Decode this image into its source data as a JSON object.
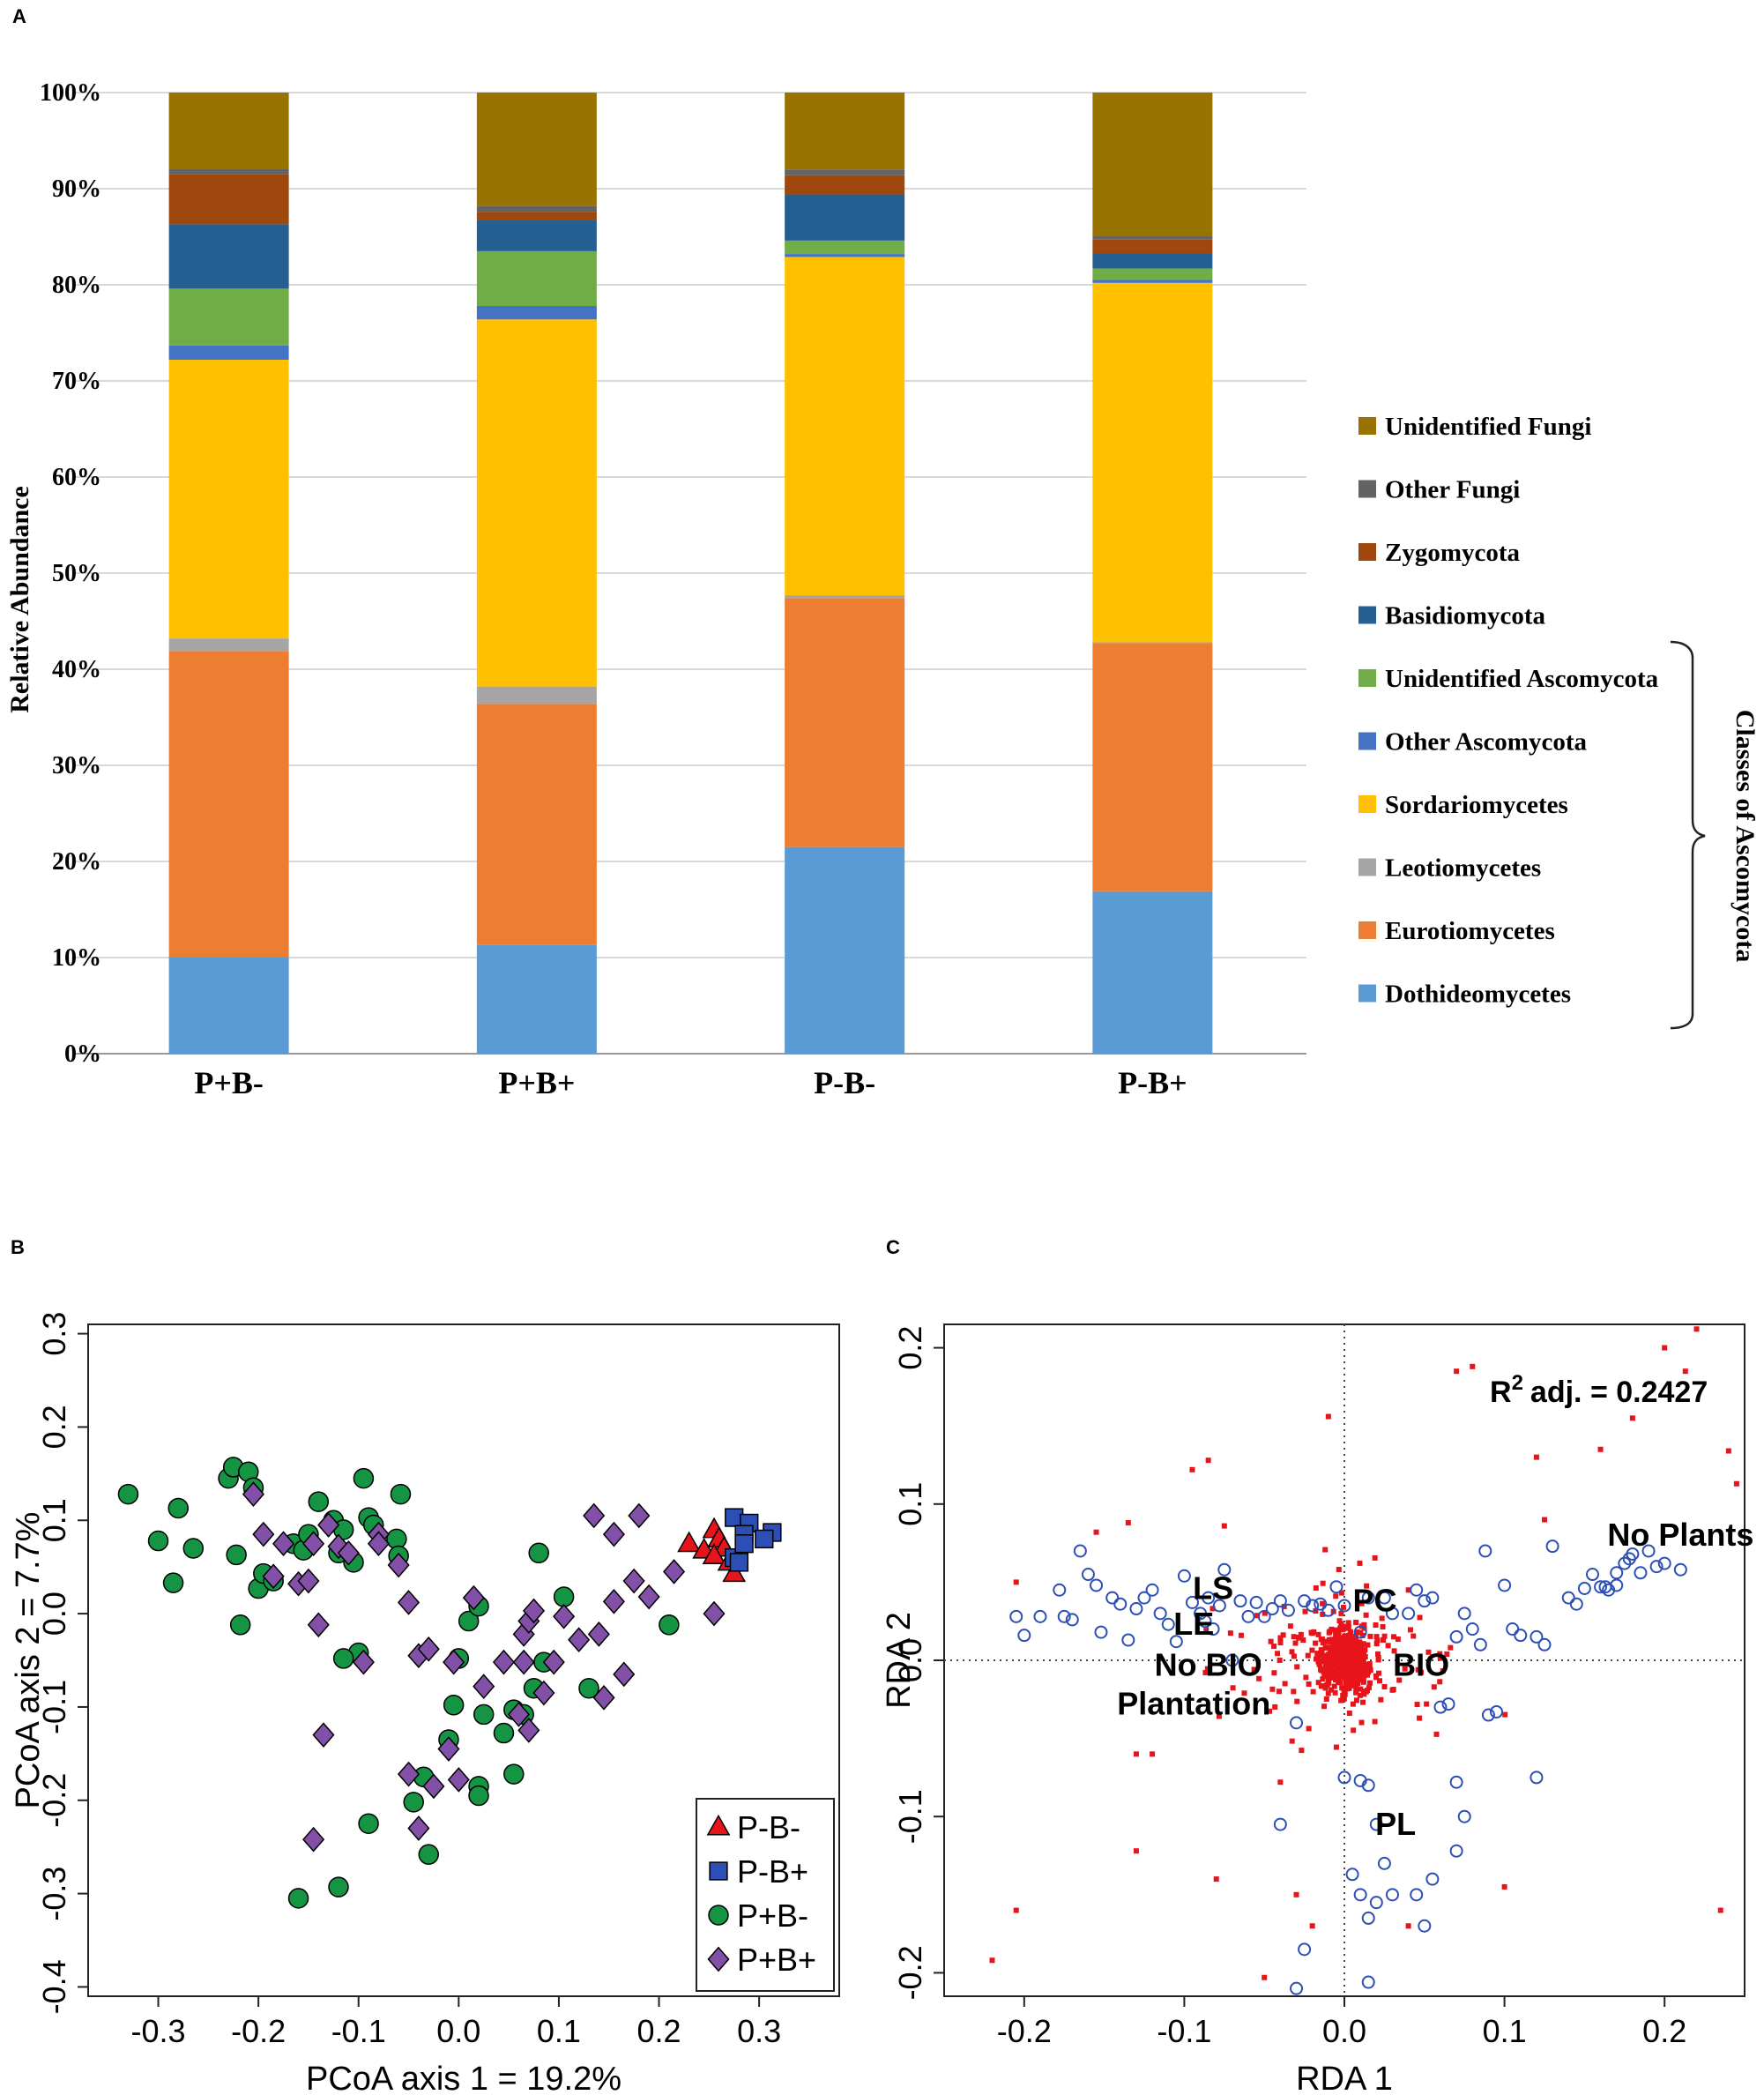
{
  "chart_data": [
    {
      "panel": "A",
      "type": "bar",
      "stacked": true,
      "ylabel": "Relative Abundance",
      "ylim": [
        0,
        100
      ],
      "yticks": [
        "0%",
        "10%",
        "20%",
        "30%",
        "40%",
        "50%",
        "60%",
        "70%",
        "80%",
        "90%",
        "100%"
      ],
      "categories": [
        "P+B-",
        "P+B+",
        "P-B-",
        "P-B+"
      ],
      "series": [
        {
          "name": "Dothideomycetes",
          "color": "#5b9bd5",
          "values": [
            10.0,
            11.3,
            21.5,
            16.9
          ]
        },
        {
          "name": "Eurotiomycetes",
          "color": "#ed7d31",
          "values": [
            31.9,
            25.1,
            25.9,
            25.8
          ]
        },
        {
          "name": "Leotiomycetes",
          "color": "#a5a5a5",
          "values": [
            1.3,
            1.8,
            0.3,
            0.1
          ]
        },
        {
          "name": "Sordariomycetes",
          "color": "#ffc000",
          "values": [
            29.0,
            38.2,
            35.2,
            37.4
          ]
        },
        {
          "name": "Other Ascomycota",
          "color": "#4472c4",
          "values": [
            1.5,
            1.4,
            0.3,
            0.3
          ]
        },
        {
          "name": "Unidentified Ascomycota",
          "color": "#70ad47",
          "values": [
            5.9,
            5.7,
            1.4,
            1.2
          ]
        },
        {
          "name": "Basidiomycota",
          "color": "#255e91",
          "values": [
            6.7,
            3.2,
            4.8,
            1.6
          ]
        },
        {
          "name": "Zygomycota",
          "color": "#9e480e",
          "values": [
            5.2,
            0.9,
            2.0,
            1.4
          ]
        },
        {
          "name": "Other Fungi",
          "color": "#636363",
          "values": [
            0.6,
            0.6,
            0.6,
            0.4
          ]
        },
        {
          "name": "Unidentified Fungi",
          "color": "#997300",
          "values": [
            7.9,
            11.8,
            8.0,
            14.9
          ]
        }
      ],
      "legend_order": [
        "Unidentified Fungi",
        "Other Fungi",
        "Zygomycota",
        "Basidiomycota",
        "Unidentified Ascomycota",
        "Other Ascomycota",
        "Sordariomycetes",
        "Leotiomycetes",
        "Eurotiomycetes",
        "Dothideomycetes"
      ],
      "bracket_label": "Classes of Ascomycota"
    },
    {
      "panel": "B",
      "type": "scatter",
      "xlabel": "PCoA axis 1 = 19.2%",
      "ylabel": "PCoA axis 2 = 7.7%",
      "xlim": [
        -0.37,
        0.38
      ],
      "ylim": [
        -0.41,
        0.31
      ],
      "xticks": [
        "-0.3",
        "-0.2",
        "-0.1",
        "0.0",
        "0.1",
        "0.2",
        "0.3"
      ],
      "yticks": [
        "-0.4",
        "-0.3",
        "-0.2",
        "-0.1",
        "0.0",
        "0.1",
        "0.2",
        "0.3"
      ],
      "series": [
        {
          "name": "P-B-",
          "marker": "triangle",
          "color": "#e8141b",
          "points": [
            [
              0.23,
              0.075
            ],
            [
              0.255,
              0.09
            ],
            [
              0.245,
              0.068
            ],
            [
              0.26,
              0.08
            ],
            [
              0.265,
              0.07
            ],
            [
              0.255,
              0.062
            ],
            [
              0.27,
              0.055
            ],
            [
              0.275,
              0.043
            ]
          ]
        },
        {
          "name": "P-B+",
          "marker": "square",
          "color": "#2d4fb5",
          "points": [
            [
              0.275,
              0.103
            ],
            [
              0.29,
              0.097
            ],
            [
              0.285,
              0.085
            ],
            [
              0.313,
              0.087
            ],
            [
              0.305,
              0.08
            ],
            [
              0.275,
              0.06
            ],
            [
              0.28,
              0.055
            ],
            [
              0.285,
              0.075
            ]
          ]
        },
        {
          "name": "P+B-",
          "marker": "circle",
          "color": "#159544",
          "points": [
            [
              -0.33,
              0.128
            ],
            [
              -0.3,
              0.078
            ],
            [
              -0.285,
              0.033
            ],
            [
              -0.28,
              0.113
            ],
            [
              -0.265,
              0.07
            ],
            [
              -0.23,
              0.145
            ],
            [
              -0.225,
              0.157
            ],
            [
              -0.21,
              0.152
            ],
            [
              -0.205,
              0.135
            ],
            [
              -0.222,
              0.063
            ],
            [
              -0.218,
              -0.012
            ],
            [
              -0.2,
              0.027
            ],
            [
              -0.195,
              0.043
            ],
            [
              -0.185,
              0.035
            ],
            [
              -0.165,
              0.075
            ],
            [
              -0.155,
              0.068
            ],
            [
              -0.15,
              0.085
            ],
            [
              -0.14,
              0.12
            ],
            [
              -0.125,
              0.1
            ],
            [
              -0.12,
              0.065
            ],
            [
              -0.115,
              0.09
            ],
            [
              -0.105,
              0.055
            ],
            [
              -0.095,
              0.145
            ],
            [
              -0.09,
              0.103
            ],
            [
              -0.085,
              0.095
            ],
            [
              -0.062,
              0.08
            ],
            [
              -0.058,
              0.128
            ],
            [
              -0.06,
              0.062
            ],
            [
              -0.1,
              -0.042
            ],
            [
              -0.115,
              -0.048
            ],
            [
              -0.09,
              -0.225
            ],
            [
              -0.12,
              -0.293
            ],
            [
              -0.16,
              -0.305
            ],
            [
              0.01,
              -0.008
            ],
            [
              0.02,
              0.008
            ],
            [
              0.045,
              -0.128
            ],
            [
              0.055,
              -0.103
            ],
            [
              0.075,
              -0.08
            ],
            [
              0.065,
              -0.108
            ],
            [
              0.08,
              0.065
            ],
            [
              0.105,
              0.018
            ],
            [
              0.13,
              -0.08
            ],
            [
              0.02,
              -0.185
            ],
            [
              0.02,
              -0.195
            ],
            [
              -0.005,
              -0.098
            ],
            [
              0.0,
              -0.048
            ],
            [
              -0.03,
              -0.258
            ],
            [
              -0.035,
              -0.175
            ],
            [
              -0.045,
              -0.202
            ],
            [
              0.21,
              -0.012
            ],
            [
              0.055,
              -0.172
            ],
            [
              0.085,
              -0.052
            ],
            [
              0.025,
              -0.108
            ],
            [
              -0.01,
              -0.135
            ]
          ]
        },
        {
          "name": "P+B+",
          "marker": "diamond",
          "color": "#8250a7",
          "points": [
            [
              -0.205,
              0.128
            ],
            [
              -0.195,
              0.085
            ],
            [
              -0.185,
              0.04
            ],
            [
              -0.175,
              0.075
            ],
            [
              -0.16,
              0.032
            ],
            [
              -0.15,
              0.035
            ],
            [
              -0.145,
              0.075
            ],
            [
              -0.13,
              0.095
            ],
            [
              -0.12,
              0.072
            ],
            [
              -0.11,
              0.065
            ],
            [
              -0.135,
              -0.13
            ],
            [
              -0.145,
              -0.242
            ],
            [
              -0.14,
              -0.012
            ],
            [
              -0.08,
              0.085
            ],
            [
              -0.06,
              0.052
            ],
            [
              -0.05,
              0.012
            ],
            [
              -0.04,
              -0.045
            ],
            [
              -0.03,
              -0.038
            ],
            [
              -0.08,
              0.075
            ],
            [
              -0.095,
              -0.052
            ],
            [
              -0.05,
              -0.172
            ],
            [
              -0.04,
              -0.23
            ],
            [
              -0.025,
              -0.185
            ],
            [
              -0.01,
              -0.145
            ],
            [
              -0.005,
              -0.052
            ],
            [
              0.0,
              -0.178
            ],
            [
              0.015,
              0.017
            ],
            [
              0.025,
              -0.078
            ],
            [
              0.045,
              -0.052
            ],
            [
              0.06,
              -0.108
            ],
            [
              0.07,
              -0.125
            ],
            [
              0.065,
              -0.022
            ],
            [
              0.07,
              -0.008
            ],
            [
              0.075,
              0.003
            ],
            [
              0.085,
              -0.085
            ],
            [
              0.095,
              -0.052
            ],
            [
              0.105,
              -0.003
            ],
            [
              0.12,
              -0.028
            ],
            [
              0.135,
              0.105
            ],
            [
              0.14,
              -0.022
            ],
            [
              0.145,
              -0.09
            ],
            [
              0.155,
              0.013
            ],
            [
              0.165,
              -0.065
            ],
            [
              0.175,
              0.035
            ],
            [
              0.18,
              0.105
            ],
            [
              0.19,
              0.018
            ],
            [
              0.215,
              0.045
            ],
            [
              0.155,
              0.085
            ],
            [
              0.255,
              0.0
            ],
            [
              0.065,
              -0.052
            ]
          ]
        }
      ]
    },
    {
      "panel": "C",
      "type": "scatter",
      "xlabel": "RDA 1",
      "ylabel": "RDA 2",
      "xlim": [
        -0.25,
        0.25
      ],
      "ylim": [
        -0.215,
        0.215
      ],
      "xticks": [
        "-0.2",
        "-0.1",
        "0.0",
        "0.1",
        "0.2"
      ],
      "yticks": [
        "-0.2",
        "-0.1",
        "0.0",
        "0.1",
        "0.2"
      ],
      "annotation": {
        "text": "adj. = 0.2427",
        "prefix": "R",
        "superscript": "2"
      },
      "labels": [
        {
          "text": "No Plants",
          "x": 0.21,
          "y": 0.08
        },
        {
          "text": "LS",
          "x": -0.082,
          "y": 0.046
        },
        {
          "text": "LE",
          "x": -0.094,
          "y": 0.023
        },
        {
          "text": "PC",
          "x": 0.019,
          "y": 0.038
        },
        {
          "text": "No BIO",
          "x": -0.085,
          "y": -0.003
        },
        {
          "text": "BIO",
          "x": 0.048,
          "y": -0.003
        },
        {
          "text": "Plantation",
          "x": -0.094,
          "y": -0.028
        },
        {
          "text": "PL",
          "x": 0.032,
          "y": -0.105
        }
      ],
      "species_points": [
        [
          -0.205,
          0.028
        ],
        [
          -0.2,
          0.016
        ],
        [
          -0.19,
          0.028
        ],
        [
          -0.178,
          0.045
        ],
        [
          -0.175,
          0.028
        ],
        [
          -0.17,
          0.026
        ],
        [
          -0.165,
          0.07
        ],
        [
          -0.16,
          0.055
        ],
        [
          -0.155,
          0.048
        ],
        [
          -0.152,
          0.018
        ],
        [
          -0.145,
          0.04
        ],
        [
          -0.14,
          0.036
        ],
        [
          -0.135,
          0.013
        ],
        [
          -0.13,
          0.033
        ],
        [
          -0.125,
          0.04
        ],
        [
          -0.12,
          0.045
        ],
        [
          -0.115,
          0.03
        ],
        [
          -0.11,
          0.023
        ],
        [
          -0.105,
          0.012
        ],
        [
          -0.1,
          0.054
        ],
        [
          -0.095,
          0.037
        ],
        [
          -0.09,
          0.03
        ],
        [
          -0.087,
          0.025
        ],
        [
          -0.085,
          0.04
        ],
        [
          -0.082,
          0.02
        ],
        [
          -0.078,
          0.035
        ],
        [
          -0.075,
          0.058
        ],
        [
          -0.07,
          0.0
        ],
        [
          -0.065,
          0.038
        ],
        [
          -0.06,
          0.028
        ],
        [
          -0.055,
          0.037
        ],
        [
          -0.05,
          0.028
        ],
        [
          -0.045,
          0.033
        ],
        [
          -0.04,
          0.038
        ],
        [
          -0.035,
          0.032
        ],
        [
          -0.03,
          -0.04
        ],
        [
          -0.025,
          0.038
        ],
        [
          -0.02,
          0.035
        ],
        [
          -0.015,
          0.036
        ],
        [
          -0.01,
          0.032
        ],
        [
          -0.005,
          0.047
        ],
        [
          0.0,
          0.035
        ],
        [
          0.01,
          0.018
        ],
        [
          0.015,
          0.04
        ],
        [
          0.025,
          0.04
        ],
        [
          0.03,
          0.03
        ],
        [
          0.04,
          0.03
        ],
        [
          0.045,
          0.045
        ],
        [
          0.05,
          0.038
        ],
        [
          0.055,
          0.04
        ],
        [
          0.06,
          -0.03
        ],
        [
          0.065,
          -0.028
        ],
        [
          0.07,
          0.015
        ],
        [
          0.075,
          0.03
        ],
        [
          0.08,
          0.02
        ],
        [
          0.085,
          0.01
        ],
        [
          0.088,
          0.07
        ],
        [
          0.09,
          -0.035
        ],
        [
          0.095,
          -0.033
        ],
        [
          0.1,
          0.048
        ],
        [
          0.105,
          0.02
        ],
        [
          0.11,
          0.016
        ],
        [
          0.12,
          0.015
        ],
        [
          0.125,
          0.01
        ],
        [
          0.13,
          0.073
        ],
        [
          0.14,
          0.04
        ],
        [
          0.145,
          0.036
        ],
        [
          0.15,
          0.046
        ],
        [
          0.155,
          0.055
        ],
        [
          0.16,
          0.047
        ],
        [
          0.163,
          0.047
        ],
        [
          0.165,
          0.045
        ],
        [
          0.17,
          0.048
        ],
        [
          0.17,
          0.056
        ],
        [
          0.175,
          0.062
        ],
        [
          0.178,
          0.065
        ],
        [
          0.18,
          0.068
        ],
        [
          0.185,
          0.056
        ],
        [
          0.19,
          0.07
        ],
        [
          0.195,
          0.06
        ],
        [
          0.2,
          0.062
        ],
        [
          0.21,
          0.058
        ],
        [
          -0.025,
          -0.185
        ],
        [
          -0.03,
          -0.21
        ],
        [
          -0.04,
          -0.105
        ],
        [
          0.0,
          -0.075
        ],
        [
          0.01,
          -0.077
        ],
        [
          0.015,
          -0.08
        ],
        [
          0.02,
          -0.105
        ],
        [
          0.025,
          -0.13
        ],
        [
          0.01,
          -0.15
        ],
        [
          0.005,
          -0.137
        ],
        [
          0.02,
          -0.155
        ],
        [
          0.015,
          -0.165
        ],
        [
          0.03,
          -0.15
        ],
        [
          0.045,
          -0.15
        ],
        [
          0.05,
          -0.17
        ],
        [
          0.055,
          -0.14
        ],
        [
          0.07,
          -0.078
        ],
        [
          0.075,
          -0.1
        ],
        [
          0.07,
          -0.122
        ],
        [
          0.12,
          -0.075
        ],
        [
          0.015,
          -0.206
        ]
      ],
      "site_points_note": "dense red square cluster near the origin plus scattered outliers",
      "site_color": "#e8141b",
      "species_color": "#2d4fb5"
    }
  ],
  "panel_labels": [
    "A",
    "B",
    "C"
  ],
  "legend_b": [
    "P-B-",
    "P-B+",
    "P+B-",
    "P+B+"
  ]
}
